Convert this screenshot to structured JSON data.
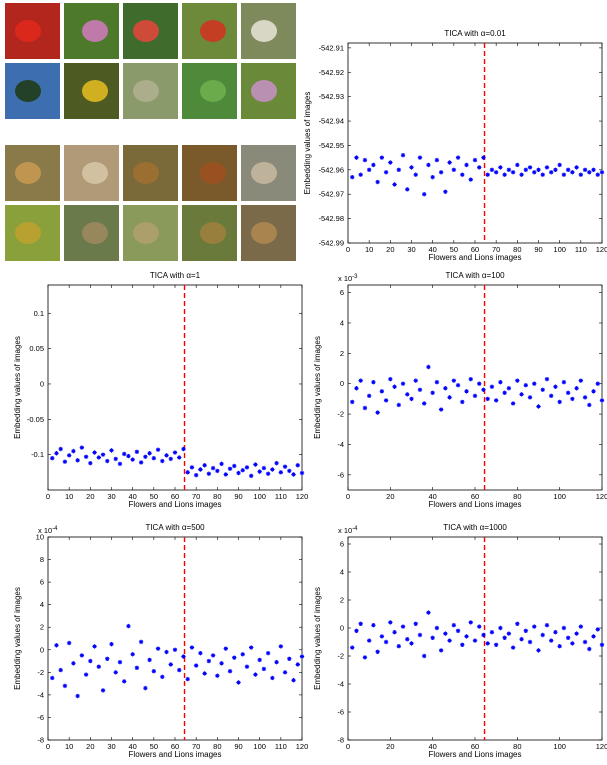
{
  "chart_data": [
    {
      "type": "scatter",
      "title": "TICA with α=0.01",
      "xlabel": "Flowers and Lions images",
      "ylabel": "Embedding values of images",
      "color": "#0000ff",
      "marker": "*",
      "x": [
        2,
        4,
        6,
        8,
        10,
        12,
        14,
        16,
        18,
        20,
        22,
        24,
        26,
        28,
        30,
        32,
        34,
        36,
        38,
        40,
        42,
        44,
        46,
        48,
        50,
        52,
        54,
        56,
        58,
        60,
        62,
        64,
        66,
        68,
        70,
        72,
        74,
        76,
        78,
        80,
        82,
        84,
        86,
        88,
        90,
        92,
        94,
        96,
        98,
        100,
        102,
        104,
        106,
        108,
        110,
        112,
        114,
        116,
        118,
        120
      ],
      "values": [
        -542.963,
        -542.955,
        -542.962,
        -542.956,
        -542.96,
        -542.958,
        -542.965,
        -542.955,
        -542.961,
        -542.957,
        -542.966,
        -542.96,
        -542.954,
        -542.968,
        -542.959,
        -542.962,
        -542.955,
        -542.97,
        -542.958,
        -542.963,
        -542.956,
        -542.961,
        -542.969,
        -542.957,
        -542.96,
        -542.955,
        -542.962,
        -542.958,
        -542.964,
        -542.956,
        -542.959,
        -542.955,
        -542.962,
        -542.96,
        -542.961,
        -542.959,
        -542.962,
        -542.96,
        -542.961,
        -542.958,
        -542.962,
        -542.96,
        -542.959,
        -542.961,
        -542.96,
        -542.962,
        -542.959,
        -542.961,
        -542.96,
        -542.958,
        -542.962,
        -542.96,
        -542.961,
        -542.959,
        -542.962,
        -542.96,
        -542.961,
        -542.96,
        -542.962,
        -542.961
      ],
      "xlim": [
        0,
        120
      ],
      "ylim": [
        -542.99,
        -542.908
      ],
      "xticks": [
        0,
        10,
        20,
        30,
        40,
        50,
        60,
        70,
        80,
        90,
        100,
        110,
        120
      ],
      "yticks": [
        -542.91,
        -542.92,
        -542.93,
        -542.94,
        -542.95,
        -542.96,
        -542.97,
        -542.98,
        -542.99
      ],
      "vline": {
        "x": 64.5,
        "color": "#ff0000",
        "style": "dashed"
      }
    },
    {
      "type": "scatter",
      "title": "TICA with α=1",
      "xlabel": "Flowers and Lions images",
      "ylabel": "Embedding values of images",
      "color": "#0000ff",
      "marker": "*",
      "x": [
        2,
        4,
        6,
        8,
        10,
        12,
        14,
        16,
        18,
        20,
        22,
        24,
        26,
        28,
        30,
        32,
        34,
        36,
        38,
        40,
        42,
        44,
        46,
        48,
        50,
        52,
        54,
        56,
        58,
        60,
        62,
        64,
        66,
        68,
        70,
        72,
        74,
        76,
        78,
        80,
        82,
        84,
        86,
        88,
        90,
        92,
        94,
        96,
        98,
        100,
        102,
        104,
        106,
        108,
        110,
        112,
        114,
        116,
        118,
        120
      ],
      "values": [
        -0.105,
        -0.098,
        -0.092,
        -0.11,
        -0.101,
        -0.095,
        -0.108,
        -0.09,
        -0.103,
        -0.112,
        -0.097,
        -0.104,
        -0.1,
        -0.109,
        -0.094,
        -0.106,
        -0.113,
        -0.099,
        -0.102,
        -0.107,
        -0.096,
        -0.111,
        -0.103,
        -0.098,
        -0.105,
        -0.093,
        -0.109,
        -0.101,
        -0.106,
        -0.097,
        -0.104,
        -0.092,
        -0.125,
        -0.118,
        -0.129,
        -0.121,
        -0.115,
        -0.127,
        -0.119,
        -0.123,
        -0.113,
        -0.128,
        -0.12,
        -0.116,
        -0.126,
        -0.122,
        -0.118,
        -0.13,
        -0.114,
        -0.124,
        -0.119,
        -0.127,
        -0.121,
        -0.112,
        -0.125,
        -0.117,
        -0.123,
        -0.128,
        -0.115,
        -0.126
      ],
      "xlim": [
        0,
        120
      ],
      "ylim": [
        -0.15,
        0.14
      ],
      "xticks": [
        0,
        10,
        20,
        30,
        40,
        50,
        60,
        70,
        80,
        90,
        100,
        110,
        120
      ],
      "yticks": [
        0.1,
        0.05,
        0,
        -0.05,
        -0.1
      ],
      "vline": {
        "x": 64.5,
        "color": "#ff0000",
        "style": "dashed"
      }
    },
    {
      "type": "scatter",
      "title": "TICA with α=100",
      "xlabel": "Flowers and Lions images",
      "ylabel": "Embedding values of images",
      "color": "#0000ff",
      "marker": "*",
      "y_multiplier": {
        "base": "x 10",
        "exponent": "-3"
      },
      "x": [
        2,
        4,
        6,
        8,
        10,
        12,
        14,
        16,
        18,
        20,
        22,
        24,
        26,
        28,
        30,
        32,
        34,
        36,
        38,
        40,
        42,
        44,
        46,
        48,
        50,
        52,
        54,
        56,
        58,
        60,
        62,
        64,
        66,
        68,
        70,
        72,
        74,
        76,
        78,
        80,
        82,
        84,
        86,
        88,
        90,
        92,
        94,
        96,
        98,
        100,
        102,
        104,
        106,
        108,
        110,
        112,
        114,
        116,
        118,
        120
      ],
      "values": [
        -1.2,
        -0.3,
        0.2,
        -1.6,
        -0.8,
        0.1,
        -1.9,
        -0.5,
        -1.1,
        0.3,
        -0.2,
        -1.4,
        0.0,
        -0.7,
        -1.0,
        0.2,
        -0.4,
        -1.3,
        1.1,
        -0.6,
        0.1,
        -1.7,
        -0.3,
        -0.9,
        0.2,
        -0.1,
        -1.2,
        -0.5,
        0.3,
        -0.8,
        0.0,
        -0.4,
        -1.0,
        -0.2,
        -1.1,
        0.1,
        -0.6,
        -0.3,
        -1.3,
        0.2,
        -0.7,
        -0.1,
        -0.9,
        0.0,
        -1.5,
        -0.4,
        0.3,
        -0.8,
        -0.2,
        -1.2,
        0.1,
        -0.6,
        -1.0,
        -0.3,
        0.2,
        -0.9,
        -1.4,
        -0.5,
        0.0,
        -1.1
      ],
      "xlim": [
        0,
        120
      ],
      "ylim": [
        -7,
        6.5
      ],
      "xticks": [
        0,
        20,
        40,
        60,
        80,
        100,
        120
      ],
      "yticks": [
        6,
        4,
        2,
        0,
        -2,
        -4,
        -6
      ],
      "vline": {
        "x": 64.5,
        "color": "#ff0000",
        "style": "dashed"
      }
    },
    {
      "type": "scatter",
      "title": "TICA with α=500",
      "xlabel": "Flowers and Lions images",
      "ylabel": "Embedding values of images",
      "color": "#0000ff",
      "marker": "*",
      "y_multiplier": {
        "base": "x 10",
        "exponent": "-4"
      },
      "x": [
        2,
        4,
        6,
        8,
        10,
        12,
        14,
        16,
        18,
        20,
        22,
        24,
        26,
        28,
        30,
        32,
        34,
        36,
        38,
        40,
        42,
        44,
        46,
        48,
        50,
        52,
        54,
        56,
        58,
        60,
        62,
        64,
        66,
        68,
        70,
        72,
        74,
        76,
        78,
        80,
        82,
        84,
        86,
        88,
        90,
        92,
        94,
        96,
        98,
        100,
        102,
        104,
        106,
        108,
        110,
        112,
        114,
        116,
        118,
        120
      ],
      "values": [
        -2.5,
        0.4,
        -1.8,
        -3.2,
        0.6,
        -1.2,
        -4.1,
        -0.5,
        -2.2,
        -1.0,
        0.3,
        -1.5,
        -3.6,
        -0.8,
        0.5,
        -2.0,
        -1.1,
        -2.8,
        2.1,
        -0.4,
        -1.6,
        0.7,
        -3.4,
        -0.9,
        -1.9,
        0.1,
        -2.4,
        -0.2,
        -1.3,
        0.0,
        -1.8,
        -0.6,
        -2.6,
        0.2,
        -1.4,
        -0.3,
        -2.1,
        -1.0,
        -0.5,
        -2.3,
        -1.2,
        0.1,
        -1.9,
        -0.7,
        -2.9,
        -0.4,
        -1.5,
        0.2,
        -2.2,
        -0.9,
        -1.7,
        -0.3,
        -2.5,
        -1.1,
        0.3,
        -2.0,
        -0.8,
        -2.7,
        -1.3,
        -0.6
      ],
      "xlim": [
        0,
        120
      ],
      "ylim": [
        -8,
        10
      ],
      "xticks": [
        0,
        10,
        20,
        30,
        40,
        50,
        60,
        70,
        80,
        90,
        100,
        110,
        120
      ],
      "yticks": [
        10,
        8,
        6,
        4,
        2,
        0,
        -2,
        -4,
        -6,
        -8
      ],
      "vline": {
        "x": 64.5,
        "color": "#ff0000",
        "style": "dashed"
      }
    },
    {
      "type": "scatter",
      "title": "TICA with α=1000",
      "xlabel": "Flowers and Lions images",
      "ylabel": "Embedding values of images",
      "color": "#0000ff",
      "marker": "*",
      "y_multiplier": {
        "base": "x 10",
        "exponent": "-4"
      },
      "x": [
        2,
        4,
        6,
        8,
        10,
        12,
        14,
        16,
        18,
        20,
        22,
        24,
        26,
        28,
        30,
        32,
        34,
        36,
        38,
        40,
        42,
        44,
        46,
        48,
        50,
        52,
        54,
        56,
        58,
        60,
        62,
        64,
        66,
        68,
        70,
        72,
        74,
        76,
        78,
        80,
        82,
        84,
        86,
        88,
        90,
        92,
        94,
        96,
        98,
        100,
        102,
        104,
        106,
        108,
        110,
        112,
        114,
        116,
        118,
        120
      ],
      "values": [
        -1.4,
        -0.2,
        0.3,
        -2.1,
        -0.9,
        0.2,
        -1.7,
        -0.6,
        -1.0,
        0.4,
        -0.3,
        -1.3,
        0.1,
        -0.8,
        -1.1,
        0.3,
        -0.5,
        -2.0,
        1.1,
        -0.7,
        0.0,
        -1.6,
        -0.4,
        -0.9,
        0.2,
        -0.2,
        -1.2,
        -0.6,
        0.4,
        -0.9,
        0.1,
        -0.5,
        -1.1,
        -0.3,
        -1.2,
        0.0,
        -0.7,
        -0.4,
        -1.4,
        0.3,
        -0.8,
        -0.2,
        -1.0,
        0.1,
        -1.6,
        -0.5,
        0.2,
        -0.9,
        -0.3,
        -1.3,
        0.0,
        -0.7,
        -1.1,
        -0.4,
        0.1,
        -1.0,
        -1.5,
        -0.6,
        -0.1,
        -1.2
      ],
      "xlim": [
        0,
        120
      ],
      "ylim": [
        -8,
        6.5
      ],
      "xticks": [
        0,
        20,
        40,
        60,
        80,
        100,
        120
      ],
      "yticks": [
        6,
        4,
        2,
        0,
        -2,
        -4,
        -6,
        -8
      ],
      "vline": {
        "x": 64.5,
        "color": "#ff0000",
        "style": "dashed"
      }
    }
  ]
}
